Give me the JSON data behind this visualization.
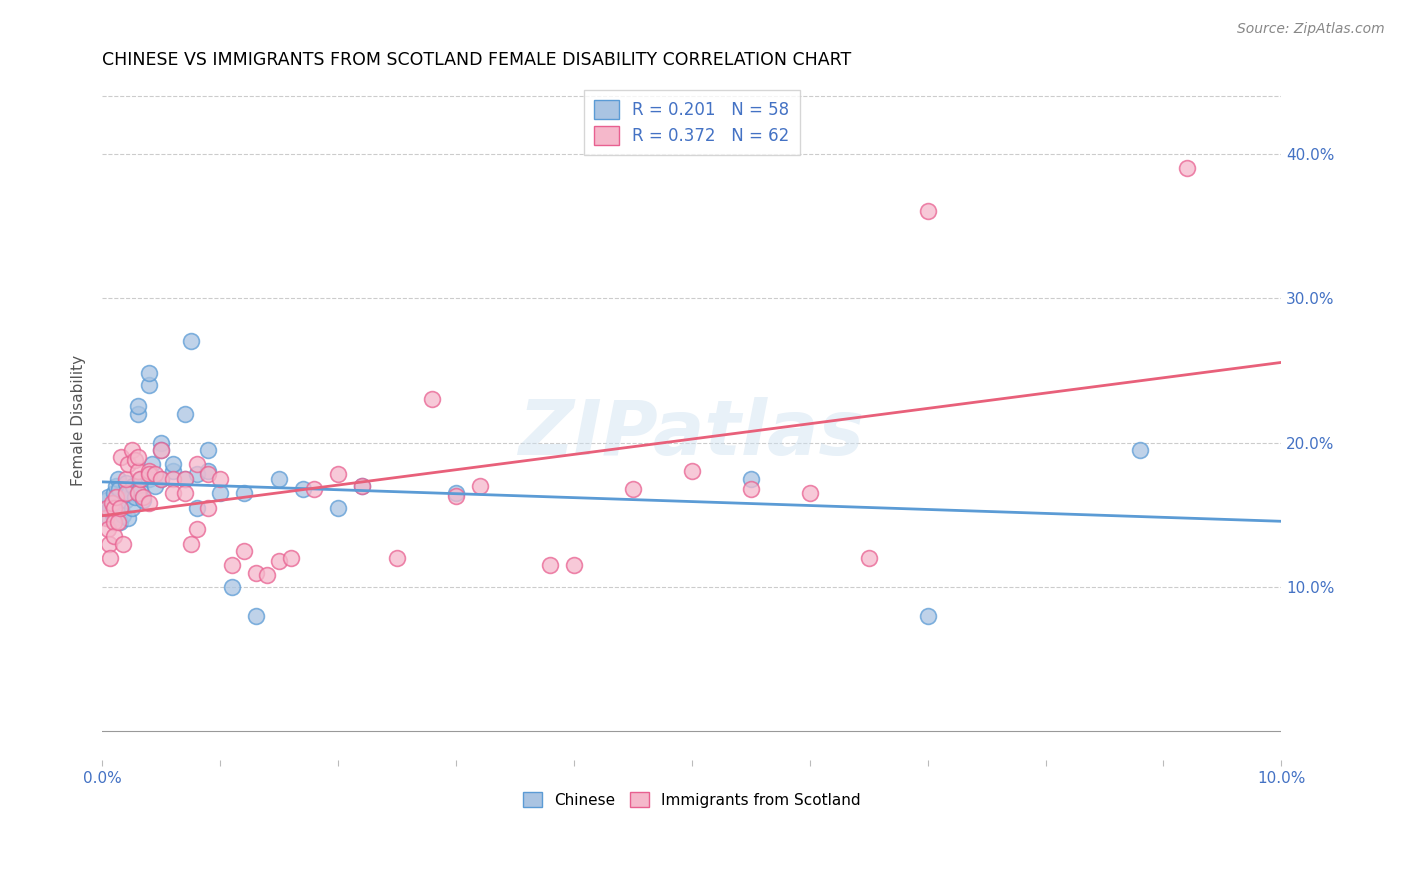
{
  "title": "CHINESE VS IMMIGRANTS FROM SCOTLAND FEMALE DISABILITY CORRELATION CHART",
  "source": "Source: ZipAtlas.com",
  "ylabel": "Female Disability",
  "xlim": [
    0.0,
    0.1
  ],
  "ylim": [
    -0.02,
    0.45
  ],
  "x_tick_positions": [
    0.0,
    0.01,
    0.02,
    0.03,
    0.04,
    0.05,
    0.06,
    0.07,
    0.08,
    0.09,
    0.1
  ],
  "x_tick_labels": [
    "0.0%",
    "",
    "",
    "",
    "",
    "",
    "",
    "",
    "",
    "",
    "10.0%"
  ],
  "y_tick_positions": [
    0.0,
    0.1,
    0.2,
    0.3,
    0.4
  ],
  "y_right_labels": [
    "",
    "10.0%",
    "20.0%",
    "30.0%",
    "40.0%"
  ],
  "chinese_color": "#aac4e2",
  "scotland_color": "#f5b8cb",
  "chinese_edge_color": "#5b9bd5",
  "scotland_edge_color": "#e86090",
  "chinese_line_color": "#5b9bd5",
  "scotland_line_color": "#e8607a",
  "R_chinese": 0.201,
  "N_chinese": 58,
  "R_scotland": 0.372,
  "N_scotland": 62,
  "legend_label_chinese": "Chinese",
  "legend_label_scotland": "Immigrants from Scotland",
  "watermark": "ZIPatlas",
  "chinese_x": [
    0.0003,
    0.0004,
    0.0005,
    0.0006,
    0.0007,
    0.0008,
    0.0009,
    0.001,
    0.001,
    0.001,
    0.0012,
    0.0013,
    0.0014,
    0.0015,
    0.0016,
    0.0018,
    0.002,
    0.002,
    0.0022,
    0.0023,
    0.0025,
    0.0026,
    0.0028,
    0.003,
    0.003,
    0.003,
    0.0032,
    0.0033,
    0.0035,
    0.004,
    0.004,
    0.004,
    0.0042,
    0.0045,
    0.005,
    0.005,
    0.005,
    0.006,
    0.006,
    0.007,
    0.007,
    0.0075,
    0.008,
    0.008,
    0.009,
    0.009,
    0.01,
    0.011,
    0.012,
    0.013,
    0.015,
    0.017,
    0.02,
    0.022,
    0.03,
    0.055,
    0.07,
    0.088
  ],
  "chinese_y": [
    0.155,
    0.16,
    0.162,
    0.148,
    0.155,
    0.152,
    0.15,
    0.165,
    0.158,
    0.148,
    0.17,
    0.175,
    0.168,
    0.145,
    0.155,
    0.15,
    0.172,
    0.16,
    0.148,
    0.165,
    0.155,
    0.17,
    0.162,
    0.165,
    0.22,
    0.225,
    0.168,
    0.175,
    0.16,
    0.24,
    0.248,
    0.175,
    0.185,
    0.17,
    0.2,
    0.175,
    0.195,
    0.18,
    0.185,
    0.22,
    0.175,
    0.27,
    0.178,
    0.155,
    0.195,
    0.18,
    0.165,
    0.1,
    0.165,
    0.08,
    0.175,
    0.168,
    0.155,
    0.17,
    0.165,
    0.175,
    0.08,
    0.195
  ],
  "scotland_x": [
    0.0003,
    0.0004,
    0.0005,
    0.0006,
    0.0007,
    0.0008,
    0.001,
    0.001,
    0.001,
    0.0012,
    0.0013,
    0.0015,
    0.0016,
    0.0018,
    0.002,
    0.002,
    0.0022,
    0.0025,
    0.0028,
    0.003,
    0.003,
    0.003,
    0.0032,
    0.0035,
    0.004,
    0.004,
    0.004,
    0.0045,
    0.005,
    0.005,
    0.006,
    0.006,
    0.007,
    0.007,
    0.0075,
    0.008,
    0.008,
    0.009,
    0.009,
    0.01,
    0.011,
    0.012,
    0.013,
    0.014,
    0.015,
    0.016,
    0.018,
    0.02,
    0.022,
    0.025,
    0.028,
    0.03,
    0.032,
    0.038,
    0.04,
    0.045,
    0.05,
    0.055,
    0.06,
    0.065,
    0.07,
    0.092
  ],
  "scotland_y": [
    0.148,
    0.155,
    0.14,
    0.13,
    0.12,
    0.158,
    0.145,
    0.155,
    0.135,
    0.162,
    0.145,
    0.155,
    0.19,
    0.13,
    0.165,
    0.175,
    0.185,
    0.195,
    0.188,
    0.18,
    0.165,
    0.19,
    0.175,
    0.162,
    0.18,
    0.178,
    0.158,
    0.178,
    0.195,
    0.175,
    0.175,
    0.165,
    0.175,
    0.165,
    0.13,
    0.185,
    0.14,
    0.178,
    0.155,
    0.175,
    0.115,
    0.125,
    0.11,
    0.108,
    0.118,
    0.12,
    0.168,
    0.178,
    0.17,
    0.12,
    0.23,
    0.163,
    0.17,
    0.115,
    0.115,
    0.168,
    0.18,
    0.168,
    0.165,
    0.12,
    0.36,
    0.39
  ]
}
